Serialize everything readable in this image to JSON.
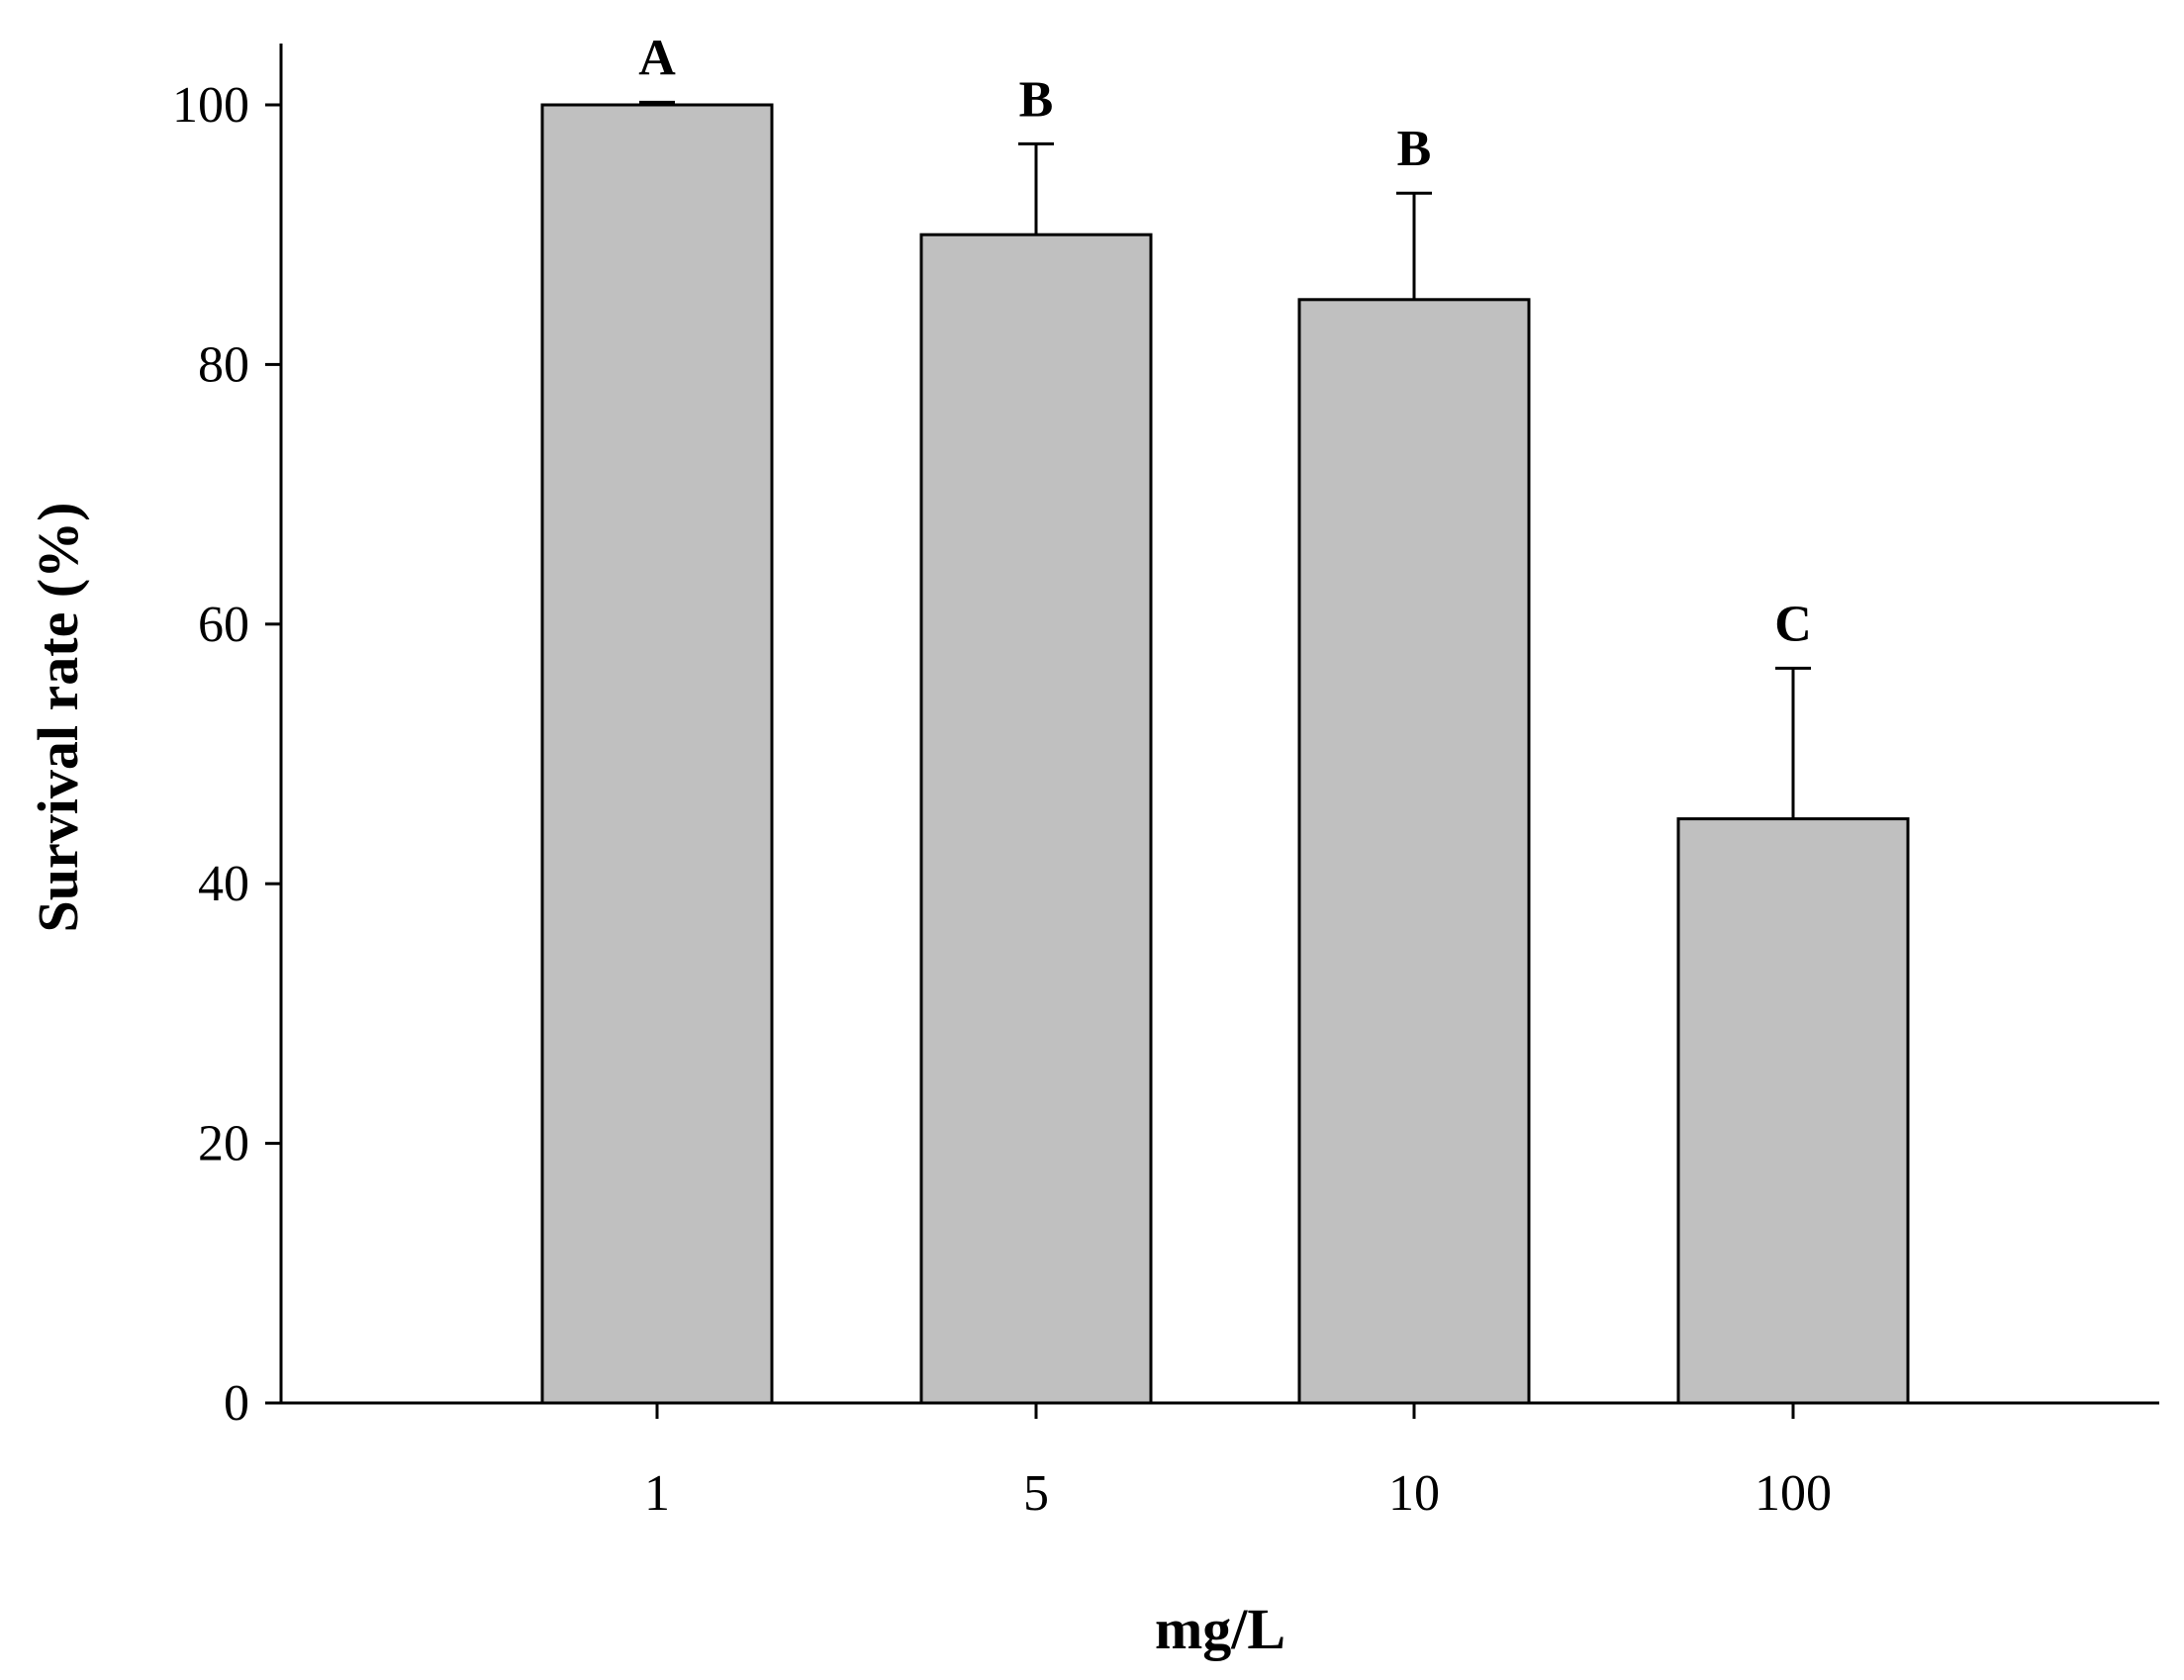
{
  "chart_data": {
    "type": "bar",
    "title": "",
    "xlabel": "mg/L",
    "ylabel": "Survival rate (%)",
    "categories": [
      "1",
      "5",
      "10",
      "100"
    ],
    "values": [
      100,
      90,
      85,
      45
    ],
    "error_upper": [
      0.2,
      7,
      8.2,
      11.6
    ],
    "significance_labels": [
      "A",
      "B",
      "B",
      "C"
    ],
    "ylim": [
      0,
      100
    ],
    "yticks": [
      "0",
      "20",
      "40",
      "60",
      "80",
      "100"
    ],
    "grid": false,
    "legend": "none",
    "bar_color": "#c0c0c0",
    "edge_color": "#000000"
  }
}
